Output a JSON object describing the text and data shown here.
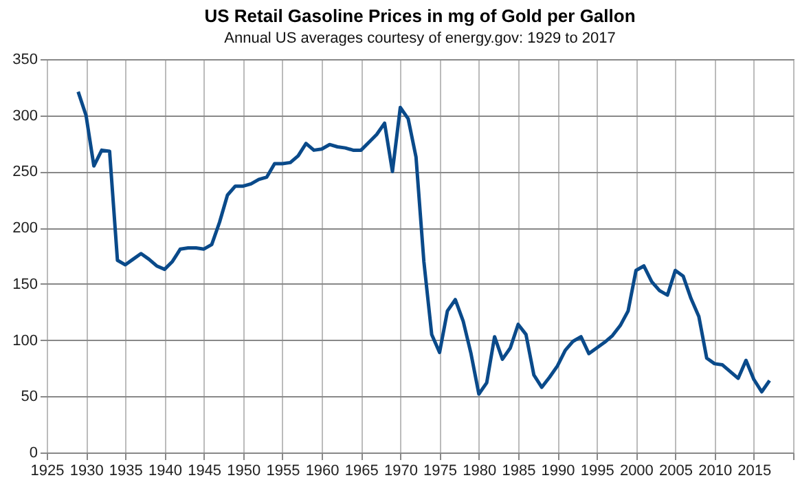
{
  "chart_data": {
    "type": "line",
    "title": "US Retail Gasoline Prices in mg of Gold per Gallon",
    "subtitle": "Annual US averages courtesy of energy.gov: 1929 to 2017",
    "x": [
      1929,
      1930,
      1931,
      1932,
      1933,
      1934,
      1935,
      1936,
      1937,
      1938,
      1939,
      1940,
      1941,
      1942,
      1943,
      1944,
      1945,
      1946,
      1947,
      1948,
      1949,
      1950,
      1951,
      1952,
      1953,
      1954,
      1955,
      1956,
      1957,
      1958,
      1959,
      1960,
      1961,
      1962,
      1963,
      1964,
      1965,
      1966,
      1967,
      1968,
      1969,
      1970,
      1971,
      1972,
      1973,
      1974,
      1975,
      1976,
      1977,
      1978,
      1979,
      1980,
      1981,
      1982,
      1983,
      1984,
      1985,
      1986,
      1987,
      1988,
      1989,
      1990,
      1991,
      1992,
      1993,
      1994,
      1995,
      1996,
      1997,
      1998,
      1999,
      2000,
      2001,
      2002,
      2003,
      2004,
      2005,
      2006,
      2007,
      2008,
      2009,
      2010,
      2011,
      2012,
      2013,
      2014,
      2015,
      2016,
      2017
    ],
    "series": [
      {
        "color": "#0a4a8a",
        "values": [
          321,
          300,
          255,
          269,
          268,
          171,
          167,
          172,
          177,
          172,
          166,
          163,
          170,
          181,
          182,
          182,
          181,
          185,
          205,
          229,
          237,
          237,
          239,
          243,
          245,
          257,
          257,
          258,
          264,
          275,
          269,
          270,
          274,
          272,
          271,
          269,
          269,
          276,
          283,
          293,
          250,
          307,
          297,
          263,
          170,
          105,
          89,
          126,
          136,
          117,
          88,
          52,
          62,
          103,
          83,
          93,
          114,
          105,
          69,
          58,
          67,
          77,
          91,
          99,
          103,
          88,
          93,
          98,
          104,
          113,
          126,
          162,
          166,
          152,
          144,
          140,
          162,
          157,
          137,
          121,
          84,
          79,
          78,
          72,
          66,
          82,
          65,
          54,
          64
        ]
      }
    ],
    "xlim": [
      1925,
      2020
    ],
    "xticks": [
      1925,
      1930,
      1935,
      1940,
      1945,
      1950,
      1955,
      1960,
      1965,
      1970,
      1975,
      1980,
      1985,
      1990,
      1995,
      2000,
      2005,
      2010,
      2015,
      {
        "value": 2020,
        "label": null
      }
    ],
    "ylim": [
      0,
      350
    ],
    "yticks": [
      0,
      50,
      100,
      150,
      200,
      250,
      300,
      350
    ],
    "grid": true,
    "marker": "none",
    "line_style": "solid"
  }
}
